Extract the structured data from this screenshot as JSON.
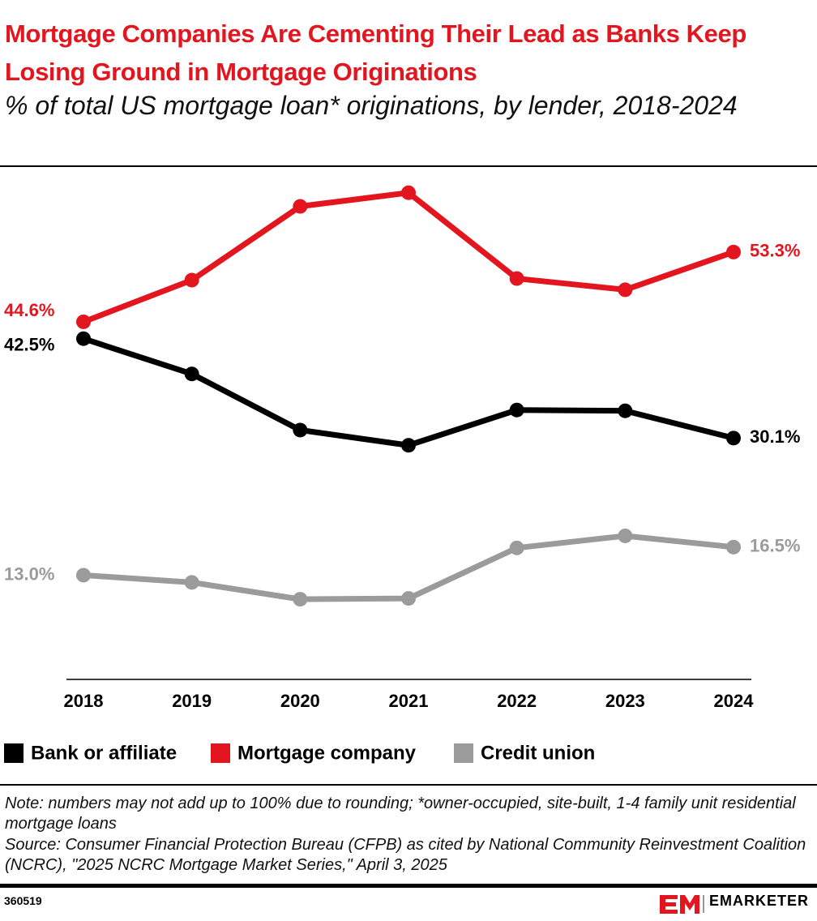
{
  "chart_data": {
    "type": "line",
    "title": "Mortgage Companies Are Cementing Their Lead as Banks Keep Losing Ground in Mortgage Originations",
    "subtitle": "% of total US mortgage loan* originations, by lender, 2018-2024",
    "categories": [
      "2018",
      "2019",
      "2020",
      "2021",
      "2022",
      "2023",
      "2024"
    ],
    "series": [
      {
        "name": "Bank or affiliate",
        "color": "#000000",
        "values": [
          42.5,
          38.1,
          31.1,
          29.2,
          33.6,
          33.5,
          30.1
        ],
        "value_labels": [
          "42.5%",
          null,
          null,
          null,
          null,
          null,
          "30.1%"
        ]
      },
      {
        "name": "Mortgage company",
        "color": "#e3151f",
        "values": [
          44.6,
          49.8,
          59.0,
          60.7,
          50.0,
          48.6,
          53.3
        ],
        "value_labels": [
          "44.6%",
          null,
          null,
          null,
          null,
          null,
          "53.3%"
        ]
      },
      {
        "name": "Credit union",
        "color": "#9b9b9b",
        "values": [
          13.0,
          12.1,
          10.0,
          10.1,
          16.4,
          17.9,
          16.5
        ],
        "value_labels": [
          "13.0%",
          null,
          null,
          null,
          null,
          null,
          "16.5%"
        ]
      }
    ],
    "ylim": [
      0,
      63
    ],
    "grid": false,
    "legend": "bottom",
    "note": "Note: numbers may not add up to 100% due to rounding; *owner-occupied, site-built, 1-4 family unit residential mortgage loans",
    "source": "Source: Consumer Financial Protection Bureau (CFPB) as cited by National Community Reinvestment Coalition (NCRC), \"2025 NCRC Mortgage Market Series,\" April 3, 2025",
    "chart_id": "360519",
    "brand": "EMARKETER"
  }
}
